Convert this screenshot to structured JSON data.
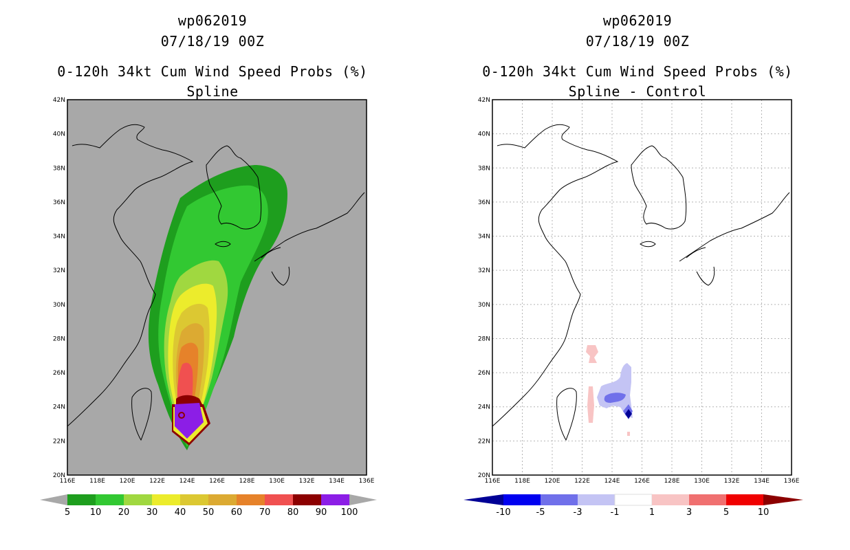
{
  "colors": {
    "gray": "#a8a8a8",
    "c5": "#1e9e1e",
    "c10": "#32c832",
    "c20": "#a0d840",
    "c30": "#ecec2c",
    "c40": "#dcc832",
    "c50": "#dcaa32",
    "c60": "#e6822a",
    "c70": "#f05050",
    "c80": "#8c0000",
    "c90": "#8c0000",
    "c100": "#8c1ee6",
    "dneg10": "#000096",
    "dneg5": "#0000f0",
    "dneg3": "#7070ea",
    "dneg1": "#c4c4f4",
    "dpos1": "#f8c4c4",
    "dpos3": "#f07070",
    "dpos5": "#f00000",
    "dpos10": "#8c0000"
  },
  "left_panel": {
    "storm_id": "wp062019",
    "date": "07/18/19 00Z",
    "product": "0-120h 34kt Cum Wind Speed Probs (%)",
    "subtitle": "Spline",
    "colorbar_labels": [
      "5",
      "10",
      "20",
      "30",
      "40",
      "50",
      "60",
      "70",
      "80",
      "90",
      "100"
    ]
  },
  "right_panel": {
    "storm_id": "wp062019",
    "date": "07/18/19 00Z",
    "product": "0-120h 34kt Cum Wind Speed Probs (%)",
    "subtitle": "Spline - Control",
    "colorbar_labels": [
      "-10",
      "-5",
      "-3",
      "-1",
      "1",
      "3",
      "5",
      "10"
    ]
  },
  "map_axes": {
    "lat_labels": [
      "42N",
      "40N",
      "38N",
      "36N",
      "34N",
      "32N",
      "30N",
      "28N",
      "26N",
      "24N",
      "22N",
      "20N"
    ],
    "lon_labels": [
      "116E",
      "118E",
      "120E",
      "122E",
      "124E",
      "126E",
      "128E",
      "130E",
      "132E",
      "134E",
      "136E"
    ]
  }
}
